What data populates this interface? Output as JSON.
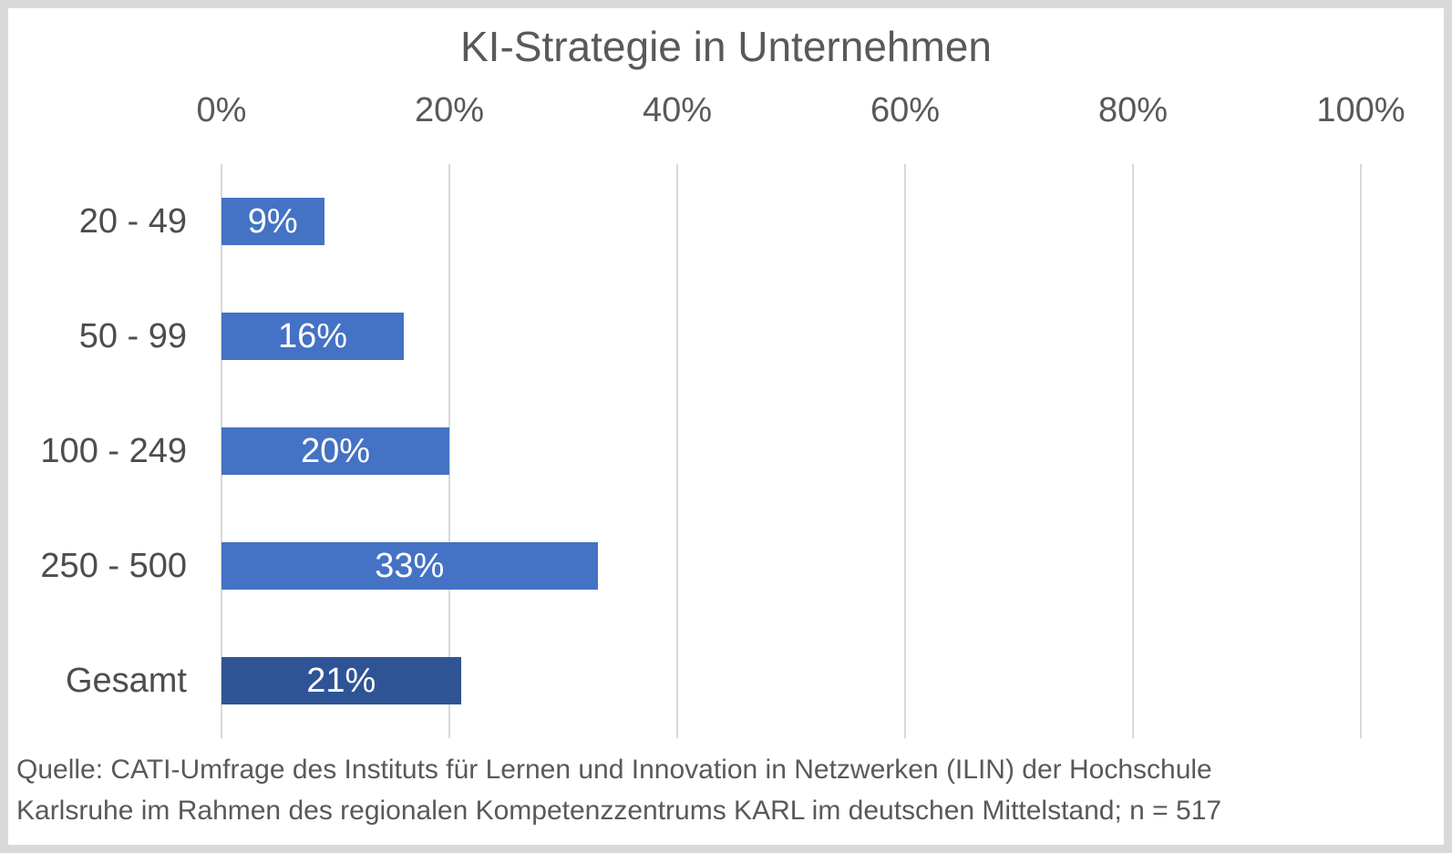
{
  "chart_data": {
    "type": "bar",
    "orientation": "horizontal",
    "title": "KI-Strategie in Unternehmen",
    "categories": [
      "20 - 49",
      "50 - 99",
      "100 - 249",
      "250 - 500",
      "Gesamt"
    ],
    "values": [
      9,
      16,
      20,
      33,
      21
    ],
    "value_labels": [
      "9%",
      "16%",
      "20%",
      "33%",
      "21%"
    ],
    "bar_colors": [
      "#4472C4",
      "#4472C4",
      "#4472C4",
      "#4472C4",
      "#2F5496"
    ],
    "x_ticks": [
      "0%",
      "20%",
      "40%",
      "60%",
      "80%",
      "100%"
    ],
    "x_tick_values": [
      0,
      20,
      40,
      60,
      80,
      100
    ],
    "xlim": [
      0,
      100
    ],
    "grid": true,
    "legend": "none",
    "axis_position": "top",
    "colors": {
      "accent": "#4472C4",
      "accent_dark": "#2F5496",
      "gridline": "#D9D9D9",
      "text": "#595959",
      "bar_label_text": "#FFFFFF",
      "frame_border": "#D9D9D9"
    }
  },
  "source": {
    "lines": [
      "Quelle: CATI-Umfrage des Instituts für Lernen und Innovation in Netzwerken (ILIN) der Hochschule",
      "Karlsruhe im Rahmen des regionalen Kompetenzzentrums KARL im deutschen Mittelstand; n = 517"
    ]
  }
}
